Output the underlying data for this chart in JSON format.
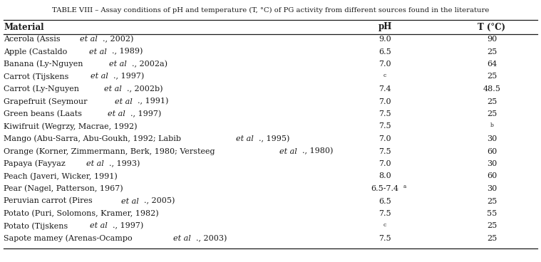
{
  "title": "TABLE VIII – Assay conditions of pH and temperature (T, °C) of PG activity from different sources found in the literature",
  "col_headers": [
    "Material",
    "pH",
    "T (°C)"
  ],
  "rows": [
    [
      [
        "Acerola (Assis ",
        false
      ],
      [
        "et al",
        true
      ],
      [
        "., 2002)",
        false
      ]
    ],
    [
      [
        "Apple (Castaldo ",
        false
      ],
      [
        "et al",
        true
      ],
      [
        "., 1989)",
        false
      ]
    ],
    [
      [
        "Banana (Ly-Nguyen ",
        false
      ],
      [
        "et al",
        true
      ],
      [
        "., 2002a)",
        false
      ]
    ],
    [
      [
        "Carrot (Tijskens ",
        false
      ],
      [
        "et al",
        true
      ],
      [
        "., 1997)",
        false
      ]
    ],
    [
      [
        "Carrot (Ly-Nguyen ",
        false
      ],
      [
        "et al",
        true
      ],
      [
        "., 2002b)",
        false
      ]
    ],
    [
      [
        "Grapefruit (Seymour ",
        false
      ],
      [
        "et al",
        true
      ],
      [
        "., 1991)",
        false
      ]
    ],
    [
      [
        "Green beans (Laats ",
        false
      ],
      [
        "et al",
        true
      ],
      [
        "., 1997)",
        false
      ]
    ],
    [
      [
        "Kiwifruit (Wegrzy, Macrae, 1992)",
        false
      ]
    ],
    [
      [
        "Mango (Abu-Sarra, Abu-Goukh, 1992; Labib ",
        false
      ],
      [
        "et al",
        true
      ],
      [
        "., 1995)",
        false
      ]
    ],
    [
      [
        "Orange (Korner, Zimmermann, Berk, 1980; Versteeg ",
        false
      ],
      [
        "et al",
        true
      ],
      [
        "., 1980)",
        false
      ]
    ],
    [
      [
        "Papaya (Fayyaz ",
        false
      ],
      [
        "et al",
        true
      ],
      [
        "., 1993)",
        false
      ]
    ],
    [
      [
        "Peach (Javeri, Wicker, 1991)",
        false
      ]
    ],
    [
      [
        "Pear (Nagel, Patterson, 1967)",
        false
      ]
    ],
    [
      [
        "Peruvian carrot (Pires ",
        false
      ],
      [
        "et al",
        true
      ],
      [
        "., 2005)",
        false
      ]
    ],
    [
      [
        "Potato (Puri, Solomons, Kramer, 1982)",
        false
      ]
    ],
    [
      [
        "Potato (Tijskens ",
        false
      ],
      [
        "et al",
        true
      ],
      [
        "., 1997)",
        false
      ]
    ],
    [
      [
        "Sapote mamey (Arenas-Ocampo ",
        false
      ],
      [
        "et al",
        true
      ],
      [
        "., 2003)",
        false
      ]
    ]
  ],
  "ph_values": [
    "9.0",
    "6.5",
    "7.0",
    "c",
    "7.4",
    "7.0",
    "7.5",
    "7.5",
    "7.0",
    "7.5",
    "7.0",
    "8.0",
    "6.5-7.4a",
    "6.5",
    "7.5",
    "c",
    "7.5"
  ],
  "temp_values": [
    "90",
    "25",
    "64",
    "25",
    "48.5",
    "25",
    "25",
    "b",
    "30",
    "60",
    "30",
    "60",
    "30",
    "25",
    "55",
    "25",
    "25"
  ],
  "background_color": "#ffffff",
  "text_color": "#1a1a1a",
  "font_size": 8.0,
  "title_font_size": 7.2,
  "header_font_size": 8.5
}
